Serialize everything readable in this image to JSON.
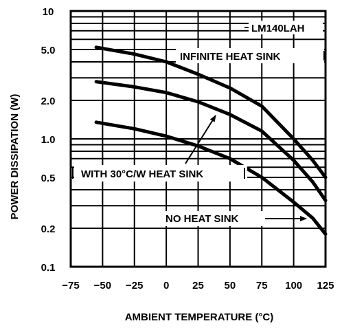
{
  "chart_data": {
    "type": "line",
    "title": "",
    "xlabel": "AMBIENT TEMPERATURE (°C)",
    "ylabel": "POWER DISSIPATION (W)",
    "y_scale": "log",
    "xlim": [
      -75,
      125
    ],
    "ylim": [
      0.1,
      10
    ],
    "x_ticks": [
      "−75",
      "−50",
      "−25",
      "0",
      "25",
      "50",
      "75",
      "100",
      "125"
    ],
    "y_ticks": [
      {
        "label": "10",
        "value": 10
      },
      {
        "label": "5.0",
        "value": 5.0
      },
      {
        "label": "2.0",
        "value": 2.0
      },
      {
        "label": "1.0",
        "value": 1.0
      },
      {
        "label": "0.5",
        "value": 0.5
      },
      {
        "label": "0.2",
        "value": 0.2
      },
      {
        "label": "0.1",
        "value": 0.1
      }
    ],
    "y_gridlines": [
      0.1,
      0.2,
      0.3,
      0.4,
      0.5,
      0.6,
      0.7,
      0.8,
      0.9,
      1,
      2,
      3,
      4,
      5,
      6,
      7,
      8,
      9,
      10
    ],
    "x_gridlines": [
      -75,
      -50,
      -25,
      0,
      25,
      50,
      75,
      100,
      125
    ],
    "grid": true,
    "series": [
      {
        "name": "INFINITE HEAT SINK",
        "x": [
          -55,
          -25,
          0,
          25,
          50,
          75,
          100,
          115,
          125
        ],
        "y": [
          5.2,
          4.6,
          4.0,
          3.2,
          2.5,
          1.8,
          1.0,
          0.68,
          0.5
        ]
      },
      {
        "name": "WITH 30°C/W HEAT SINK",
        "x": [
          -55,
          -25,
          0,
          25,
          50,
          75,
          100,
          115,
          125
        ],
        "y": [
          2.8,
          2.55,
          2.3,
          1.95,
          1.55,
          1.15,
          0.68,
          0.46,
          0.33
        ]
      },
      {
        "name": "NO HEAT SINK",
        "x": [
          -55,
          -25,
          0,
          25,
          50,
          75,
          100,
          115,
          125
        ],
        "y": [
          1.35,
          1.2,
          1.05,
          0.88,
          0.7,
          0.5,
          0.32,
          0.24,
          0.18
        ]
      }
    ],
    "annotations": [
      "LM140LAH",
      "INFINITE HEAT SINK",
      "WITH 30°C/W HEAT SINK",
      "NO HEAT SINK"
    ]
  }
}
